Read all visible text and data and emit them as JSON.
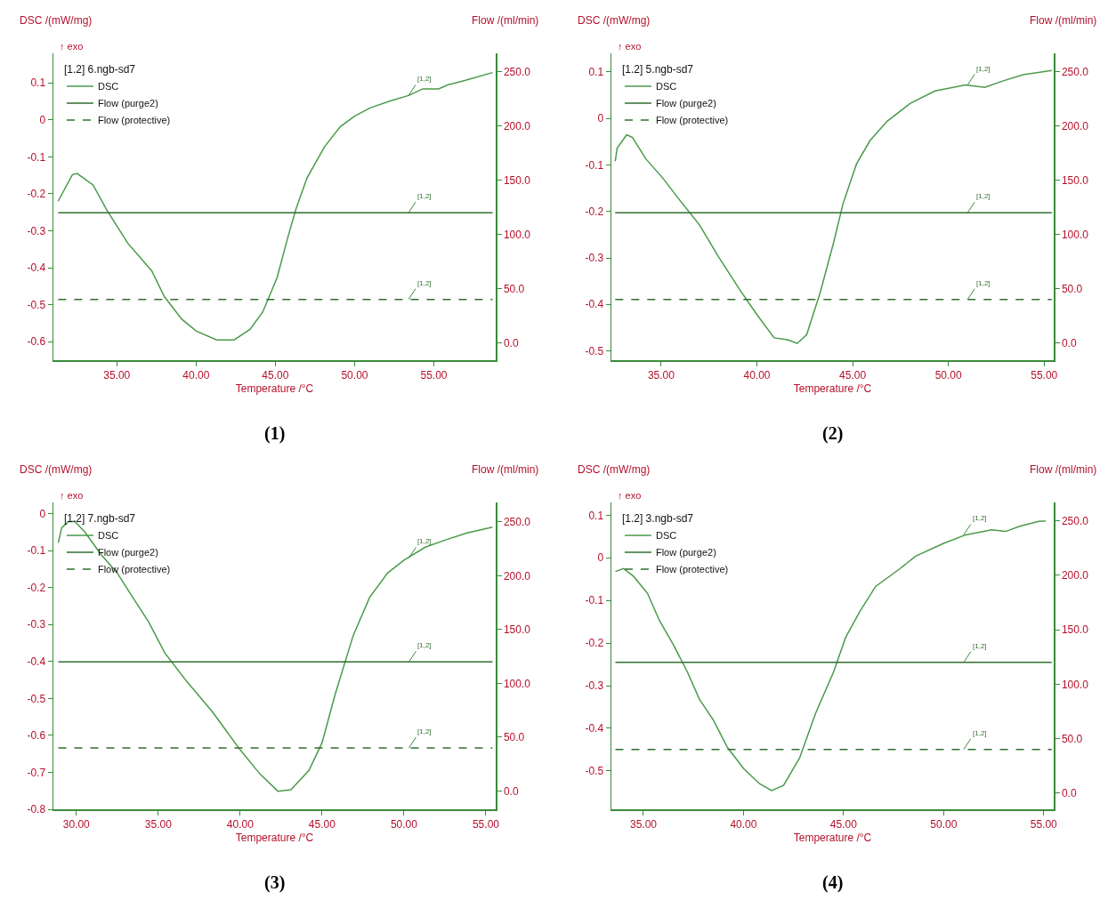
{
  "chart_data": [
    {
      "type": "line",
      "xlabel": "Temperature /°C",
      "ylabel": "DSC /(mW/mg)",
      "y2label": "Flow /(ml/min)",
      "legend_title": "[1.2] 6.ngb-sd7",
      "legend": "top left",
      "grid": false,
      "marker": "none",
      "xlim": [
        31.0,
        58.9
      ],
      "xticks": [
        {
          "value": 35,
          "label": "35.00"
        },
        {
          "value": 40,
          "label": "40.00"
        },
        {
          "value": 45,
          "label": "45.00"
        },
        {
          "value": 50,
          "label": "50.00"
        },
        {
          "value": 55,
          "label": "55.00"
        }
      ],
      "ylim": [
        -0.65,
        0.18
      ],
      "yticks": [
        0.1,
        0,
        -0.1,
        -0.2,
        -0.3,
        -0.4,
        -0.5,
        -0.6
      ],
      "y2lim": [
        -16,
        267
      ],
      "y2ticks": [
        {
          "value": 0,
          "label": "0.0"
        },
        {
          "value": 50,
          "label": "50.0"
        },
        {
          "value": 100,
          "label": "100.0"
        },
        {
          "value": 150,
          "label": "150.0"
        },
        {
          "value": 200,
          "label": "200.0"
        },
        {
          "value": 250,
          "label": "250.0"
        }
      ],
      "series": [
        {
          "name": "DSC",
          "color": "#4a9a4a",
          "x": [
            31.3,
            32.2,
            32.5,
            33.5,
            34.4,
            35.7,
            37.2,
            38.0,
            39.1,
            40.0,
            41.3,
            42.4,
            43.4,
            44.2,
            45.1,
            45.8,
            46.3,
            47.0,
            48.1,
            49.1,
            50.0,
            51.0,
            52.3,
            53.4,
            54.3,
            55.3,
            55.9,
            57.0,
            58.7
          ],
          "values": [
            -0.22,
            -0.148,
            -0.145,
            -0.176,
            -0.246,
            -0.334,
            -0.408,
            -0.478,
            -0.539,
            -0.571,
            -0.595,
            -0.595,
            -0.567,
            -0.52,
            -0.428,
            -0.316,
            -0.241,
            -0.157,
            -0.073,
            -0.018,
            0.01,
            0.033,
            0.052,
            0.066,
            0.084,
            0.084,
            0.095,
            0.107,
            0.128
          ]
        },
        {
          "name": "Flow (purge2)",
          "color": "#2f6f2f",
          "axis": "y2",
          "line_style": "solid",
          "x": [
            31.3,
            58.7
          ],
          "values": [
            120,
            120
          ]
        },
        {
          "name": "Flow (protective)",
          "color": "#2f6f2f",
          "axis": "y2",
          "line_style": "dashed",
          "x": [
            31.3,
            58.7
          ],
          "values": [
            40,
            40
          ]
        }
      ],
      "annotations": [
        "↑ exo",
        {
          "text": "[1,2]",
          "x": 53.4,
          "y": 0.066
        },
        "[1,2]",
        "[1,2]",
        "(1)"
      ]
    },
    {
      "type": "line",
      "xlabel": "Temperature /°C",
      "ylabel": "DSC /(mW/mg)",
      "y2label": "Flow /(ml/min)",
      "legend_title": "[1.2] 5.ngb-sd7",
      "legend": "top left",
      "grid": false,
      "marker": "none",
      "xlim": [
        32.4,
        55.5
      ],
      "xticks": [
        {
          "value": 35,
          "label": "35.00"
        },
        {
          "value": 40,
          "label": "40.00"
        },
        {
          "value": 45,
          "label": "45.00"
        },
        {
          "value": 50,
          "label": "50.00"
        },
        {
          "value": 55,
          "label": "55.00"
        }
      ],
      "ylim": [
        -0.52,
        0.14
      ],
      "yticks": [
        0.1,
        0,
        -0.1,
        -0.2,
        -0.3,
        -0.4,
        -0.5
      ],
      "y2lim": [
        -16,
        267
      ],
      "y2ticks": [
        {
          "value": 0,
          "label": "0.0"
        },
        {
          "value": 50,
          "label": "50.0"
        },
        {
          "value": 100,
          "label": "100.0"
        },
        {
          "value": 150,
          "label": "150.0"
        },
        {
          "value": 200,
          "label": "200.0"
        },
        {
          "value": 250,
          "label": "250.0"
        }
      ],
      "series": [
        {
          "name": "DSC",
          "color": "#4a9a4a",
          "x": [
            32.6,
            32.7,
            33.2,
            33.5,
            34.2,
            35.1,
            35.9,
            37.0,
            38.0,
            39.1,
            40.0,
            40.9,
            41.6,
            42.1,
            42.6,
            43.3,
            44.0,
            44.5,
            45.2,
            45.9,
            46.8,
            48.0,
            49.3,
            50.9,
            51.9,
            52.8,
            53.9,
            55.4
          ],
          "values": [
            -0.092,
            -0.064,
            -0.035,
            -0.041,
            -0.087,
            -0.129,
            -0.172,
            -0.229,
            -0.298,
            -0.368,
            -0.422,
            -0.472,
            -0.476,
            -0.484,
            -0.465,
            -0.375,
            -0.268,
            -0.183,
            -0.098,
            -0.048,
            -0.006,
            0.032,
            0.059,
            0.072,
            0.067,
            0.08,
            0.094,
            0.103
          ]
        },
        {
          "name": "Flow (purge2)",
          "color": "#2f6f2f",
          "axis": "y2",
          "line_style": "solid",
          "x": [
            32.6,
            55.4
          ],
          "values": [
            120,
            120
          ]
        },
        {
          "name": "Flow (protective)",
          "color": "#2f6f2f",
          "axis": "y2",
          "line_style": "dashed",
          "x": [
            32.6,
            55.4
          ],
          "values": [
            40,
            40
          ]
        }
      ],
      "annotations": [
        "↑ exo",
        {
          "text": "[1,2]",
          "x": 51.0,
          "y": 0.072
        },
        "[1,2]",
        "[1,2]",
        "(2)"
      ]
    },
    {
      "type": "line",
      "xlabel": "Temperature /°C",
      "ylabel": "DSC /(mW/mg)",
      "y2label": "Flow /(ml/min)",
      "legend_title": "[1.2] 7.ngb-sd7",
      "legend": "top left",
      "grid": false,
      "marker": "none",
      "xlim": [
        28.6,
        55.6
      ],
      "xticks": [
        {
          "value": 30,
          "label": "30.00"
        },
        {
          "value": 35,
          "label": "35.00"
        },
        {
          "value": 40,
          "label": "40.00"
        },
        {
          "value": 45,
          "label": "45.00"
        },
        {
          "value": 50,
          "label": "50.00"
        },
        {
          "value": 55,
          "label": "55.00"
        }
      ],
      "ylim": [
        -0.8,
        0.03
      ],
      "yticks": [
        0,
        -0.1,
        -0.2,
        -0.3,
        -0.4,
        -0.5,
        -0.6,
        -0.7,
        -0.8
      ],
      "y2lim": [
        -17,
        268
      ],
      "y2ticks": [
        {
          "value": 0,
          "label": "0.0"
        },
        {
          "value": 50,
          "label": "50.0"
        },
        {
          "value": 100,
          "label": "100.0"
        },
        {
          "value": 150,
          "label": "150.0"
        },
        {
          "value": 200,
          "label": "200.0"
        },
        {
          "value": 250,
          "label": "250.0"
        }
      ],
      "series": [
        {
          "name": "DSC",
          "color": "#4a9a4a",
          "x": [
            28.9,
            29.1,
            29.5,
            29.9,
            30.5,
            31.5,
            32.5,
            33.3,
            34.4,
            35.4,
            36.7,
            38.3,
            40.0,
            41.2,
            42.3,
            43.1,
            44.2,
            45.0,
            45.8,
            46.9,
            47.9,
            49.0,
            50.0,
            51.3,
            52.5,
            53.8,
            55.4
          ],
          "values": [
            -0.079,
            -0.039,
            -0.022,
            -0.021,
            -0.049,
            -0.11,
            -0.161,
            -0.217,
            -0.292,
            -0.377,
            -0.452,
            -0.536,
            -0.639,
            -0.704,
            -0.751,
            -0.747,
            -0.695,
            -0.62,
            -0.489,
            -0.33,
            -0.227,
            -0.161,
            -0.126,
            -0.091,
            -0.072,
            -0.053,
            -0.037
          ]
        },
        {
          "name": "Flow (purge2)",
          "color": "#2f6f2f",
          "axis": "y2",
          "line_style": "solid",
          "x": [
            28.9,
            55.4
          ],
          "values": [
            120,
            120
          ]
        },
        {
          "name": "Flow (protective)",
          "color": "#2f6f2f",
          "axis": "y2",
          "line_style": "dashed",
          "x": [
            28.9,
            55.4
          ],
          "values": [
            40,
            40
          ]
        }
      ],
      "annotations": [
        "↑ exo",
        {
          "text": "[1,2]",
          "x": 50.3,
          "y": -0.12
        },
        "[1,2]",
        "[1,2]",
        "(3)"
      ]
    },
    {
      "type": "line",
      "xlabel": "Temperature /°C",
      "ylabel": "DSC /(mW/mg)",
      "y2label": "Flow /(ml/min)",
      "legend_title": "[1.2] 3.ngb-sd7",
      "legend": "top left",
      "grid": false,
      "marker": "none",
      "xlim": [
        33.4,
        55.5
      ],
      "xticks": [
        {
          "value": 35,
          "label": "35.00"
        },
        {
          "value": 40,
          "label": "40.00"
        },
        {
          "value": 45,
          "label": "45.00"
        },
        {
          "value": 50,
          "label": "50.00"
        },
        {
          "value": 55,
          "label": "55.00"
        }
      ],
      "ylim": [
        -0.59,
        0.13
      ],
      "yticks": [
        0.1,
        0,
        -0.1,
        -0.2,
        -0.3,
        -0.4,
        -0.5
      ],
      "y2lim": [
        -15,
        267
      ],
      "y2ticks": [
        {
          "value": 0,
          "label": "0.0"
        },
        {
          "value": 50,
          "label": "50.0"
        },
        {
          "value": 100,
          "label": "100.0"
        },
        {
          "value": 150,
          "label": "150.0"
        },
        {
          "value": 200,
          "label": "200.0"
        },
        {
          "value": 250,
          "label": "250.0"
        }
      ],
      "series": [
        {
          "name": "DSC",
          "color": "#4a9a4a",
          "x": [
            33.6,
            34.0,
            34.5,
            35.2,
            35.8,
            36.5,
            37.2,
            37.8,
            38.5,
            39.2,
            40.0,
            40.8,
            41.4,
            42.0,
            42.8,
            43.6,
            44.5,
            45.1,
            45.8,
            46.6,
            47.8,
            48.6,
            50.0,
            51.1,
            52.4,
            53.1,
            53.8,
            54.8,
            55.1
          ],
          "values": [
            -0.032,
            -0.025,
            -0.043,
            -0.083,
            -0.147,
            -0.204,
            -0.268,
            -0.332,
            -0.381,
            -0.445,
            -0.494,
            -0.53,
            -0.546,
            -0.534,
            -0.47,
            -0.365,
            -0.268,
            -0.187,
            -0.127,
            -0.067,
            -0.026,
            0.004,
            0.034,
            0.054,
            0.066,
            0.062,
            0.074,
            0.086,
            0.086
          ]
        },
        {
          "name": "Flow (purge2)",
          "color": "#2f6f2f",
          "axis": "y2",
          "line_style": "solid",
          "x": [
            33.6,
            55.4
          ],
          "values": [
            120,
            120
          ]
        },
        {
          "name": "Flow (protective)",
          "color": "#2f6f2f",
          "axis": "y2",
          "line_style": "dashed",
          "x": [
            33.6,
            55.4
          ],
          "values": [
            40,
            40
          ]
        }
      ],
      "annotations": [
        "↑ exo",
        {
          "text": "[1,2]",
          "x": 51.0,
          "y": 0.054
        },
        "[1,2]",
        "[1,2]",
        "(4)"
      ]
    }
  ]
}
